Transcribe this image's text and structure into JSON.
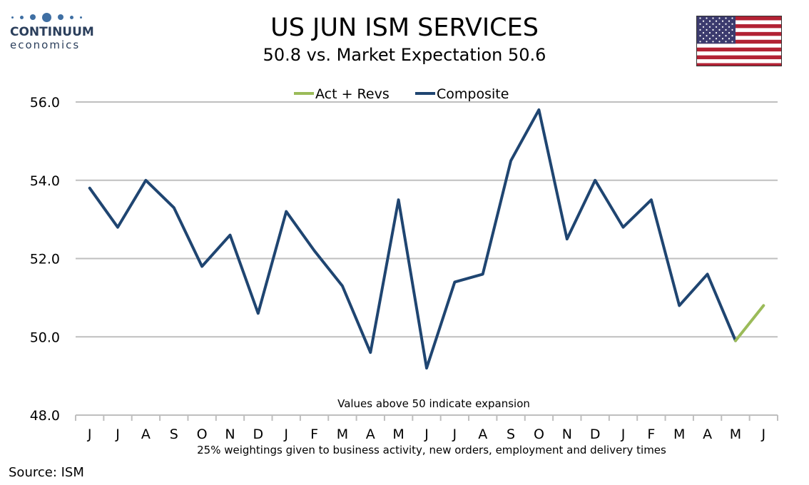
{
  "logo": {
    "line1": "CONTINUUM",
    "line2": "economics"
  },
  "title": "US JUN ISM SERVICES",
  "subtitle": "50.8 vs. Market Expectation 50.6",
  "source": "Source: ISM",
  "colors": {
    "composite": "#1f4571",
    "act_revs": "#9bbb59",
    "grid": "#bfbfbf",
    "logo": "#3f6fa3",
    "flag_red": "#b22234",
    "flag_blue": "#3c3b6e"
  },
  "chart_data": {
    "type": "line",
    "categories": [
      "J",
      "J",
      "A",
      "S",
      "O",
      "N",
      "D",
      "J",
      "F",
      "M",
      "A",
      "M",
      "J",
      "J",
      "A",
      "S",
      "O",
      "N",
      "D",
      "J",
      "F",
      "M",
      "A",
      "M",
      "J"
    ],
    "series": [
      {
        "name": "Composite",
        "values": [
          53.8,
          52.8,
          54.0,
          53.3,
          51.8,
          52.6,
          50.6,
          53.2,
          52.2,
          51.3,
          49.6,
          53.5,
          49.2,
          51.4,
          51.6,
          54.5,
          55.8,
          52.5,
          54.0,
          52.8,
          53.5,
          50.8,
          51.6,
          49.9,
          null
        ]
      },
      {
        "name": "Act + Revs",
        "values": [
          null,
          null,
          null,
          null,
          null,
          null,
          null,
          null,
          null,
          null,
          null,
          null,
          null,
          null,
          null,
          null,
          null,
          null,
          null,
          null,
          null,
          null,
          null,
          49.9,
          50.8
        ]
      }
    ],
    "ylim": [
      48.0,
      56.0
    ],
    "yticks": [
      "48.0",
      "50.0",
      "52.0",
      "54.0",
      "56.0"
    ],
    "legend": "top-center",
    "grid": true,
    "annotations": {
      "expansion_note": "Values above 50 indicate expansion",
      "weightings_note": "25% weightings given to business activity, new orders, employment and delivery times"
    }
  }
}
